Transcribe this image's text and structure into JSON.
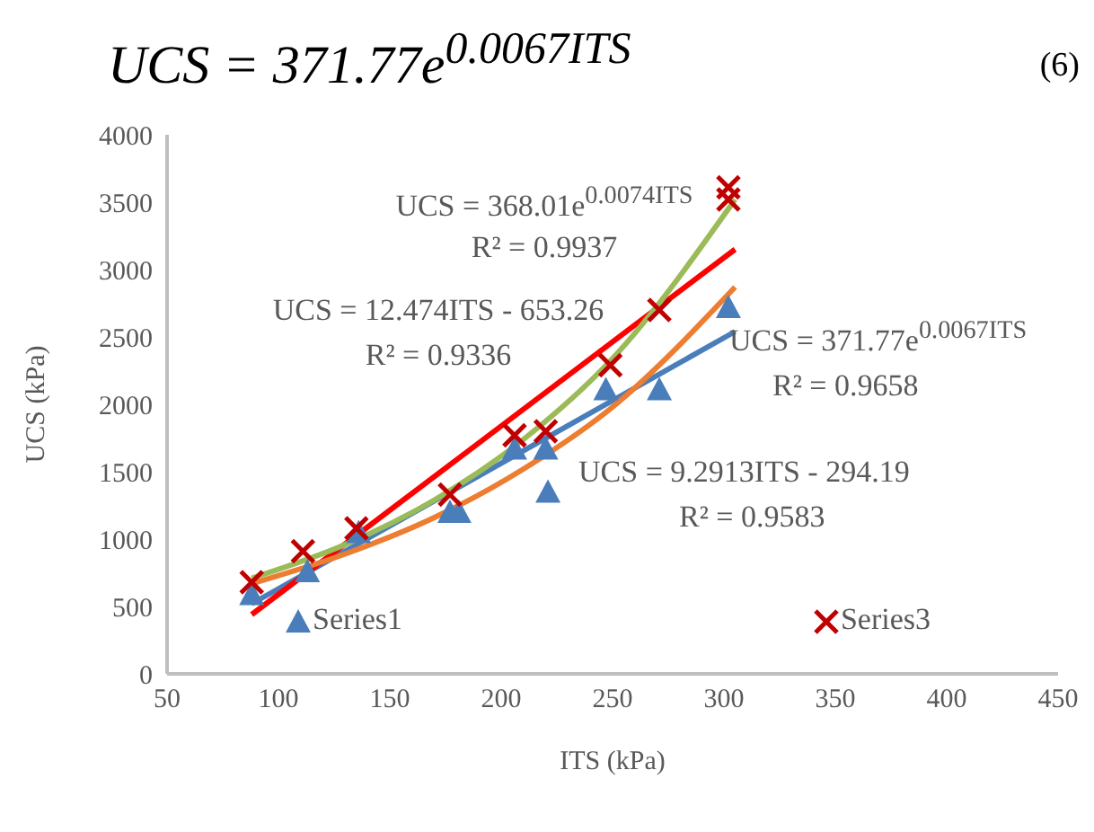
{
  "chart_data": {
    "type": "scatter",
    "title": "UCS = 371.77e$^{0.0067ITS}$",
    "xlabel": "ITS (kPa)",
    "ylabel": "UCS (kPa)",
    "xlim": [
      50,
      450
    ],
    "xticks": [
      50,
      100,
      150,
      200,
      250,
      300,
      350,
      400,
      450
    ],
    "ylim": [
      0,
      4000
    ],
    "yticks": [
      0,
      500,
      1000,
      1500,
      2000,
      2500,
      3000,
      3500,
      4000
    ],
    "grid": false,
    "legend": "bottom",
    "series": [
      {
        "name": "Series1",
        "marker": "triangle",
        "color": "#4a7ebb",
        "x": [
          88,
          113,
          136,
          177,
          181,
          206,
          220,
          221,
          247,
          271,
          302
        ],
        "values": [
          590,
          760,
          1050,
          1200,
          1200,
          1670,
          1670,
          1350,
          2110,
          2110,
          2720
        ]
      },
      {
        "name": "Series3",
        "marker": "cross",
        "color": "#c00000",
        "x": [
          88,
          111,
          135,
          177,
          206,
          220,
          249,
          271,
          302,
          302
        ],
        "values": [
          680,
          910,
          1080,
          1330,
          1770,
          1800,
          2290,
          2700,
          3610,
          3520
        ]
      },
      {
        "type": "line",
        "color": "#4a7ebb",
        "x": [
          88,
          305
        ],
        "values": [
          520,
          2540
        ]
      },
      {
        "type": "line",
        "color": "#ff0000",
        "x": [
          88,
          305
        ],
        "values": [
          440,
          3150
        ]
      },
      {
        "type": "line",
        "color": "#ed7d31",
        "x": [
          88,
          130,
          170,
          210,
          250,
          305
        ],
        "values": [
          670,
          890,
          1160,
          1520,
          1980,
          2870
        ]
      },
      {
        "type": "line",
        "color": "#9bbb59",
        "x": [
          88,
          130,
          170,
          210,
          250,
          305
        ],
        "values": [
          710,
          960,
          1290,
          1740,
          2340,
          3520
        ]
      }
    ],
    "annotations": [
      "(6)",
      "UCS = 368.01e$^{0.0074ITS}$",
      "R² = 0.9937",
      "UCS = 12.474ITS - 653.26",
      "R² = 0.9336",
      "UCS = 371.77e$^{0.0067ITS}$",
      "R² = 0.9658",
      "UCS = 9.2913ITS - 294.19",
      "R² = 0.9583"
    ]
  }
}
